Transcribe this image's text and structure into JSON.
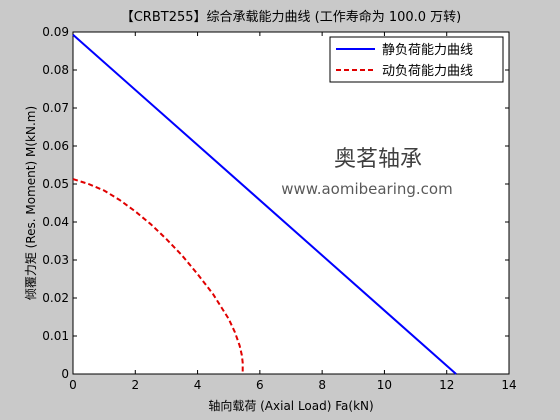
{
  "chart_data": {
    "type": "line",
    "title": "【CRBT255】综合承载能力曲线 (工作寿命为 100.0 万转)",
    "xlabel": "轴向载荷 (Axial Load) Fa(kN)",
    "ylabel": "倾覆力矩 (Res. Moment) M(kN.m)",
    "xlim": [
      0,
      14
    ],
    "ylim": [
      0,
      0.09
    ],
    "xticks": [
      0,
      2,
      4,
      6,
      8,
      10,
      12,
      14
    ],
    "yticks": [
      0,
      0.01,
      0.02,
      0.03,
      0.04,
      0.05,
      0.06,
      0.07,
      0.08,
      0.09
    ],
    "xtick_labels": [
      "0",
      "2",
      "4",
      "6",
      "8",
      "10",
      "12",
      "14"
    ],
    "ytick_labels": [
      "0",
      "0.01",
      "0.02",
      "0.03",
      "0.04",
      "0.05",
      "0.06",
      "0.07",
      "0.08",
      "0.09"
    ],
    "grid": false,
    "legend_position": "top-right",
    "series": [
      {
        "name": "静负荷能力曲线",
        "color": "#0000ff",
        "style": "solid",
        "x": [
          0,
          12.3
        ],
        "y": [
          0.0893,
          0
        ]
      },
      {
        "name": "动负荷能力曲线",
        "color": "#e00000",
        "style": "dashed",
        "x": [
          0,
          0.5,
          1.0,
          1.5,
          2.0,
          2.5,
          3.0,
          3.5,
          4.0,
          4.5,
          5.0,
          5.2,
          5.35,
          5.42,
          5.45,
          5.45
        ],
        "y": [
          0.0513,
          0.05,
          0.0483,
          0.0458,
          0.0428,
          0.0394,
          0.0355,
          0.0312,
          0.0263,
          0.021,
          0.0145,
          0.011,
          0.0075,
          0.005,
          0.003,
          0
        ]
      }
    ]
  },
  "watermark": {
    "brand": "奥茗轴承",
    "url": "www.aomibearing.com",
    "color": "#f6b08a"
  }
}
